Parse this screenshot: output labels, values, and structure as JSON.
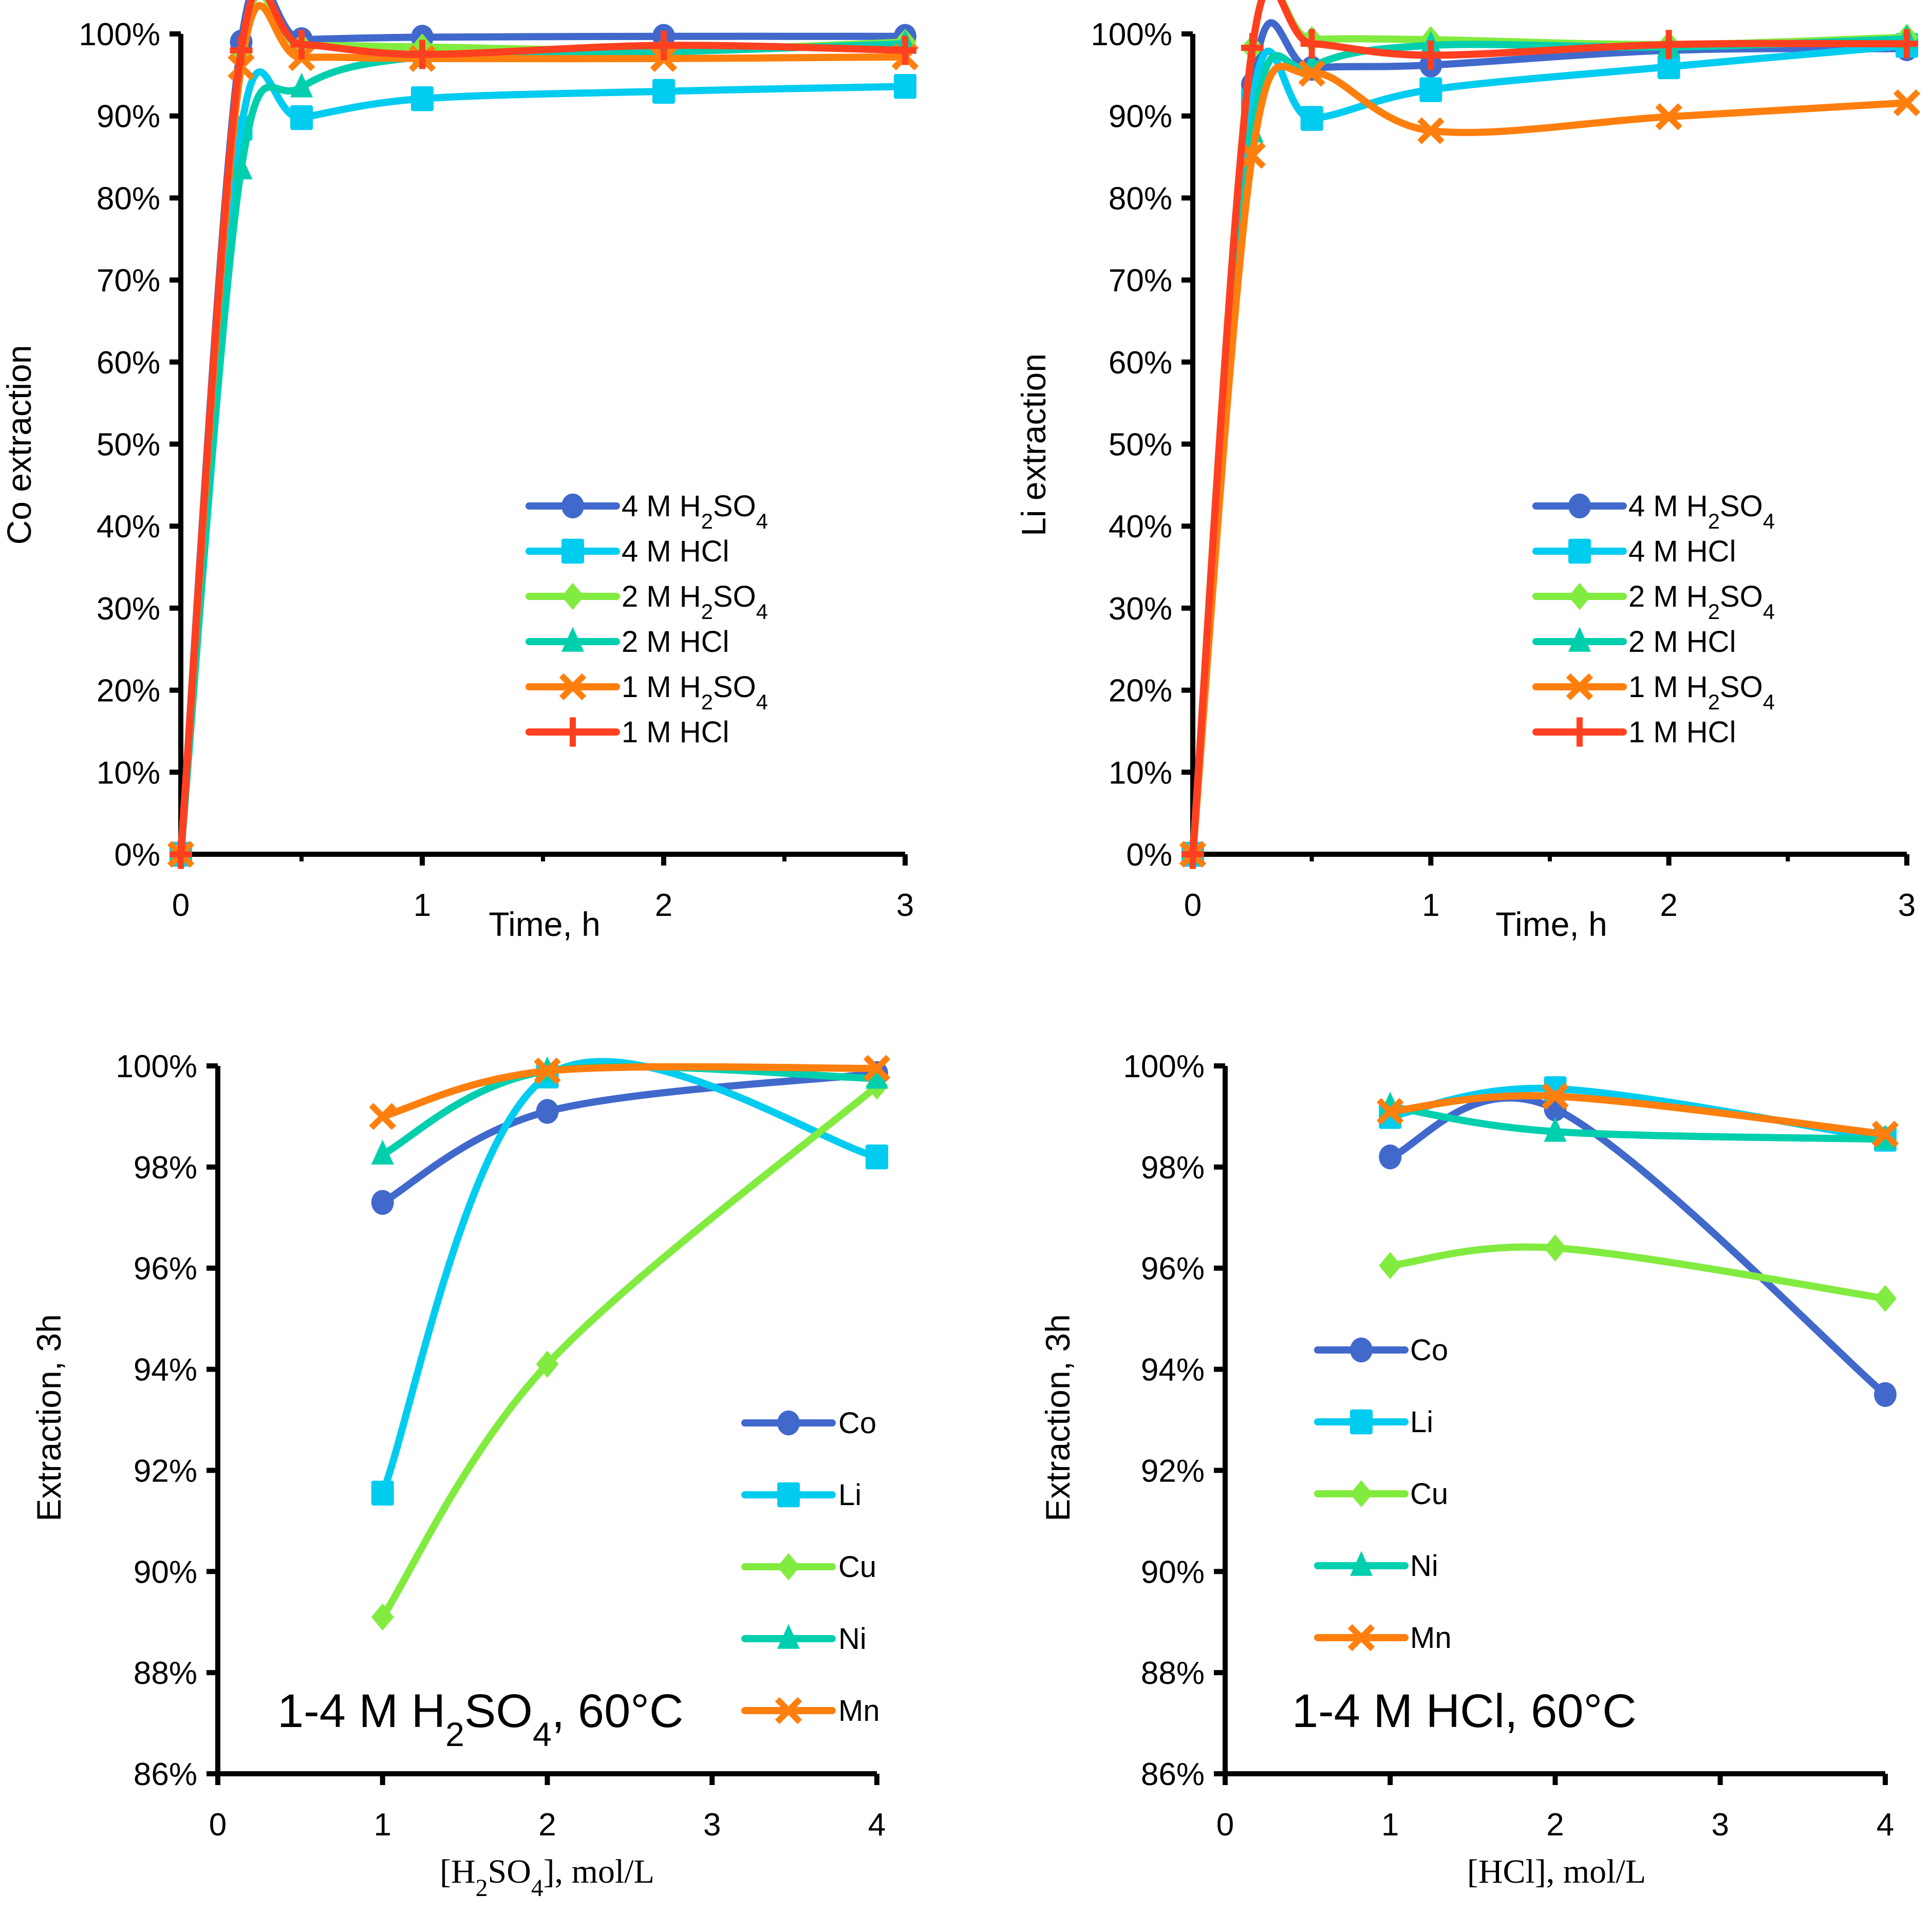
{
  "chart_data": [
    {
      "id": "co-time",
      "type": "line",
      "title": "",
      "xlabel": "Time, h",
      "ylabel": "Co extraction",
      "xlim": [
        0,
        3
      ],
      "ylim": [
        0,
        100
      ],
      "xticks": [
        "0",
        "1",
        "2",
        "3"
      ],
      "yticks": [
        "0%",
        "10%",
        "20%",
        "30%",
        "40%",
        "50%",
        "60%",
        "70%",
        "80%",
        "90%",
        "100%"
      ],
      "grid": false,
      "legend_position": "center-right",
      "x": [
        0,
        0.25,
        0.5,
        1,
        2,
        3
      ],
      "series": [
        {
          "name": "4 M H₂SO₄",
          "label_parts": [
            "4 M H",
            "2",
            "SO",
            "4"
          ],
          "color": "#4169CC",
          "marker": "circle",
          "values": [
            0,
            99.0,
            99.3,
            99.6,
            99.7,
            99.7
          ]
        },
        {
          "name": "4 M HCl",
          "label_parts": [
            "4 M HCl"
          ],
          "color": "#00CCF0",
          "marker": "square",
          "values": [
            0,
            88.5,
            89.8,
            92.1,
            93.0,
            93.6
          ]
        },
        {
          "name": "2 M H₂SO₄",
          "label_parts": [
            "2 M H",
            "2",
            "SO",
            "4"
          ],
          "color": "#82EB40",
          "marker": "diamond",
          "values": [
            0,
            97.3,
            98.5,
            98.4,
            98.0,
            99.0
          ]
        },
        {
          "name": "2 M HCl",
          "label_parts": [
            "2 M HCl"
          ],
          "color": "#00CFAE",
          "marker": "triangle",
          "values": [
            0,
            83.5,
            93.5,
            97.2,
            97.8,
            98.8
          ]
        },
        {
          "name": "1 M H₂SO₄",
          "label_parts": [
            "1 M H",
            "2",
            "SO",
            "4"
          ],
          "color": "#FF7F0E",
          "marker": "x",
          "values": [
            0,
            96.0,
            97.1,
            97.0,
            97.0,
            97.2
          ]
        },
        {
          "name": "1 M HCl",
          "label_parts": [
            "1 M HCl"
          ],
          "color": "#FF4020",
          "marker": "plus",
          "values": [
            0,
            98.0,
            98.7,
            97.5,
            98.6,
            98.0
          ]
        }
      ]
    },
    {
      "id": "li-time",
      "type": "line",
      "title": "",
      "xlabel": "Time, h",
      "ylabel": "Li extraction",
      "xlim": [
        0,
        3
      ],
      "ylim": [
        0,
        100
      ],
      "xticks": [
        "0",
        "1",
        "2",
        "3"
      ],
      "yticks": [
        "0%",
        "10%",
        "20%",
        "30%",
        "40%",
        "50%",
        "60%",
        "70%",
        "80%",
        "90%",
        "100%"
      ],
      "grid": false,
      "legend_position": "center-right",
      "x": [
        0,
        0.25,
        0.5,
        1,
        2,
        3
      ],
      "series": [
        {
          "name": "4 M H₂SO₄",
          "label_parts": [
            "4 M H",
            "2",
            "SO",
            "4"
          ],
          "color": "#4169CC",
          "marker": "circle",
          "values": [
            0,
            93.8,
            95.8,
            96.2,
            98.0,
            98.2
          ]
        },
        {
          "name": "4 M HCl",
          "label_parts": [
            "4 M HCl"
          ],
          "color": "#00CCF0",
          "marker": "square",
          "values": [
            0,
            91.8,
            89.7,
            93.2,
            96.0,
            98.6
          ]
        },
        {
          "name": "2 M H₂SO₄",
          "label_parts": [
            "2 M H",
            "2",
            "SO",
            "4"
          ],
          "color": "#82EB40",
          "marker": "diamond",
          "values": [
            0,
            98.3,
            99.3,
            99.3,
            98.7,
            99.6
          ]
        },
        {
          "name": "2 M HCl",
          "label_parts": [
            "2 M HCl"
          ],
          "color": "#00CFAE",
          "marker": "triangle",
          "values": [
            0,
            88.0,
            96.0,
            98.6,
            98.4,
            99.4
          ]
        },
        {
          "name": "1 M H₂SO₄",
          "label_parts": [
            "1 M H",
            "2",
            "SO",
            "4"
          ],
          "color": "#FF7F0E",
          "marker": "x",
          "values": [
            0,
            85.2,
            95.2,
            88.2,
            89.9,
            91.6
          ]
        },
        {
          "name": "1 M HCl",
          "label_parts": [
            "1 M HCl"
          ],
          "color": "#FF4020",
          "marker": "plus",
          "values": [
            0,
            98.3,
            98.8,
            97.4,
            98.7,
            98.8
          ]
        }
      ]
    },
    {
      "id": "h2so4-conc",
      "type": "line",
      "title": "",
      "annotation_parts": [
        "1-4 M H",
        "2",
        "SO",
        "4",
        ", 60°C"
      ],
      "annotation": "1-4 M H₂SO₄, 60°C",
      "xlabel": "[H₂SO₄], mol/L",
      "xlabel_parts": [
        "[H",
        "2",
        "SO",
        "4",
        "], mol/L"
      ],
      "ylabel": "Extraction, 3h",
      "xlim": [
        0,
        4
      ],
      "ylim": [
        86,
        100
      ],
      "xticks": [
        "0",
        "1",
        "2",
        "3",
        "4"
      ],
      "yticks": [
        "86%",
        "88%",
        "90%",
        "92%",
        "94%",
        "96%",
        "98%",
        "100%"
      ],
      "grid": false,
      "legend_position": "bottom-right",
      "x": [
        1,
        2,
        4
      ],
      "series": [
        {
          "name": "Co",
          "color": "#4169CC",
          "marker": "circle",
          "values": [
            97.3,
            99.1,
            99.85
          ]
        },
        {
          "name": "Li",
          "color": "#00CCF0",
          "marker": "square",
          "values": [
            91.55,
            99.8,
            98.2
          ]
        },
        {
          "name": "Cu",
          "color": "#82EB40",
          "marker": "diamond",
          "values": [
            89.1,
            94.1,
            99.6
          ]
        },
        {
          "name": "Ni",
          "color": "#00CFAE",
          "marker": "triangle",
          "values": [
            98.25,
            99.9,
            99.75
          ]
        },
        {
          "name": "Mn",
          "color": "#FF7F0E",
          "marker": "x",
          "values": [
            99.0,
            99.9,
            99.95
          ]
        }
      ]
    },
    {
      "id": "hcl-conc",
      "type": "line",
      "title": "",
      "annotation_parts": [
        "1-4 M HCl, 60°C"
      ],
      "annotation": "1-4 M HCl, 60°C",
      "xlabel": "[HCl], mol/L",
      "xlabel_parts": [
        "[HCl], mol/L"
      ],
      "ylabel": "Extraction, 3h",
      "xlim": [
        0,
        4
      ],
      "ylim": [
        86,
        100
      ],
      "xticks": [
        "0",
        "1",
        "2",
        "3",
        "4"
      ],
      "yticks": [
        "86%",
        "88%",
        "90%",
        "92%",
        "94%",
        "96%",
        "98%",
        "100%"
      ],
      "grid": false,
      "legend_position": "center-left",
      "x": [
        1,
        2,
        4
      ],
      "series": [
        {
          "name": "Co",
          "color": "#4169CC",
          "marker": "circle",
          "values": [
            98.2,
            99.15,
            93.5
          ]
        },
        {
          "name": "Li",
          "color": "#00CCF0",
          "marker": "square",
          "values": [
            99.0,
            99.55,
            98.55
          ]
        },
        {
          "name": "Cu",
          "color": "#82EB40",
          "marker": "diamond",
          "values": [
            96.05,
            96.4,
            95.4
          ]
        },
        {
          "name": "Ni",
          "color": "#00CFAE",
          "marker": "triangle",
          "values": [
            99.2,
            98.7,
            98.55
          ]
        },
        {
          "name": "Mn",
          "color": "#FF7F0E",
          "marker": "x",
          "values": [
            99.1,
            99.4,
            98.65
          ]
        }
      ]
    }
  ]
}
